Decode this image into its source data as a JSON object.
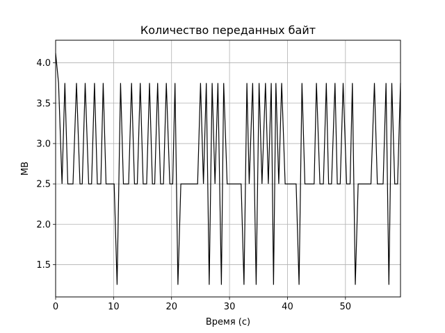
{
  "chart_data": {
    "type": "line",
    "title": "Количество переданных байт",
    "xlabel": "Время (с)",
    "ylabel": "MB",
    "xlim": [
      0,
      59.5
    ],
    "ylim": [
      1.1,
      4.28
    ],
    "xticks": [
      0,
      10,
      20,
      30,
      40,
      50
    ],
    "yticks": [
      1.5,
      2.0,
      2.5,
      3.0,
      3.5,
      4.0
    ],
    "ytick_labels": [
      "1.5",
      "2.0",
      "2.5",
      "3.0",
      "3.5",
      "4.0"
    ],
    "grid": true,
    "line_color": "#000000",
    "series": [
      {
        "x": [
          0,
          0.5,
          1.1,
          1.6,
          2.1,
          3.0,
          3.6,
          4.2,
          4.6,
          5.1,
          5.7,
          6.2,
          6.7,
          7.2,
          7.8,
          8.2,
          8.7,
          9.2,
          10.1,
          10.6,
          11.2,
          11.7,
          12.6,
          13.1,
          13.6,
          14.1,
          14.6,
          15.1,
          15.7,
          16.2,
          16.7,
          17.1,
          17.6,
          18.1,
          18.6,
          19.1,
          19.7,
          20.2,
          20.6,
          21.1,
          21.6,
          22.0,
          24.5,
          25.0,
          25.5,
          26.0,
          26.5,
          27.0,
          27.5,
          28.0,
          28.6,
          29.0,
          29.6,
          30.0,
          32.0,
          32.5,
          33.0,
          33.4,
          34.0,
          34.6,
          35.1,
          35.6,
          36.2,
          36.7,
          37.2,
          37.6,
          38.0,
          38.5,
          39.0,
          39.6,
          40.0,
          41.5,
          42.0,
          42.5,
          43.0,
          44.6,
          45.0,
          45.6,
          46.2,
          46.7,
          47.1,
          47.6,
          48.2,
          48.6,
          49.1,
          49.6,
          50.2,
          50.8,
          51.2,
          51.7,
          52.2,
          54.4,
          55.0,
          55.5,
          56.5,
          57.0,
          57.5,
          58.0,
          58.5,
          59.0,
          59.5
        ],
        "y": [
          4.12,
          3.75,
          2.5,
          3.75,
          2.5,
          2.5,
          3.75,
          2.5,
          2.5,
          3.75,
          2.5,
          2.5,
          3.75,
          2.5,
          2.5,
          3.75,
          2.5,
          2.5,
          2.5,
          1.25,
          3.75,
          2.5,
          2.5,
          3.75,
          2.5,
          2.5,
          3.75,
          2.5,
          2.5,
          3.75,
          2.5,
          2.5,
          3.75,
          2.5,
          2.5,
          3.75,
          2.5,
          2.5,
          3.75,
          1.25,
          2.5,
          2.5,
          2.5,
          3.75,
          2.5,
          3.75,
          1.25,
          3.75,
          2.5,
          3.75,
          1.25,
          3.75,
          2.5,
          2.5,
          2.5,
          1.25,
          3.75,
          2.5,
          3.75,
          1.25,
          3.75,
          2.5,
          3.75,
          2.5,
          3.75,
          1.25,
          3.75,
          2.5,
          3.75,
          2.5,
          2.5,
          2.5,
          1.25,
          3.75,
          2.5,
          2.5,
          3.75,
          2.5,
          2.5,
          3.75,
          2.5,
          2.5,
          3.75,
          2.5,
          2.5,
          3.75,
          2.5,
          2.5,
          3.75,
          1.25,
          2.5,
          2.5,
          3.75,
          2.5,
          2.5,
          3.75,
          1.25,
          3.75,
          2.5,
          2.5,
          3.75
        ]
      }
    ]
  }
}
